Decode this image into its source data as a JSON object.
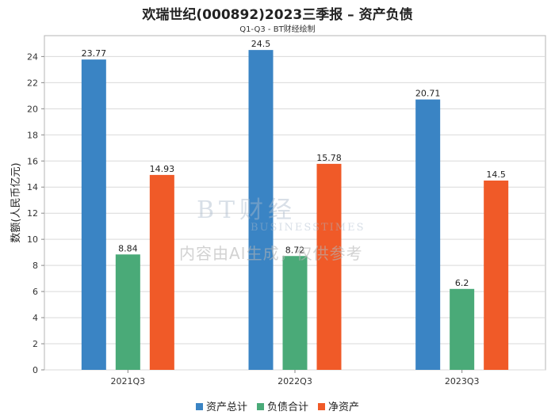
{
  "chart_data": {
    "type": "bar",
    "title": "欢瑞世纪(000892)2023三季报 – 资产负债",
    "subtitle": "Q1-Q3 - BT财经绘制",
    "xlabel": "",
    "ylabel": "数额(人民币亿元)",
    "ylim": [
      0,
      25.6
    ],
    "yticks": [
      0,
      2,
      4,
      6,
      8,
      10,
      12,
      14,
      16,
      18,
      20,
      22,
      24
    ],
    "grid": true,
    "legend_position": "bottom",
    "categories": [
      "2021Q3",
      "2022Q3",
      "2023Q3"
    ],
    "series": [
      {
        "name": "资产总计",
        "color": "#3a84c4",
        "values": [
          23.77,
          24.5,
          20.71
        ]
      },
      {
        "name": "负债合计",
        "color": "#4aaa78",
        "values": [
          8.84,
          8.72,
          6.2
        ]
      },
      {
        "name": "净资产",
        "color": "#f05a28",
        "values": [
          14.93,
          15.78,
          14.5
        ]
      }
    ]
  },
  "watermark": {
    "logo_main": "BT财经",
    "logo_sub": "BUSINESSTIMES",
    "notice": "内容由AI生成，仅供参考"
  }
}
